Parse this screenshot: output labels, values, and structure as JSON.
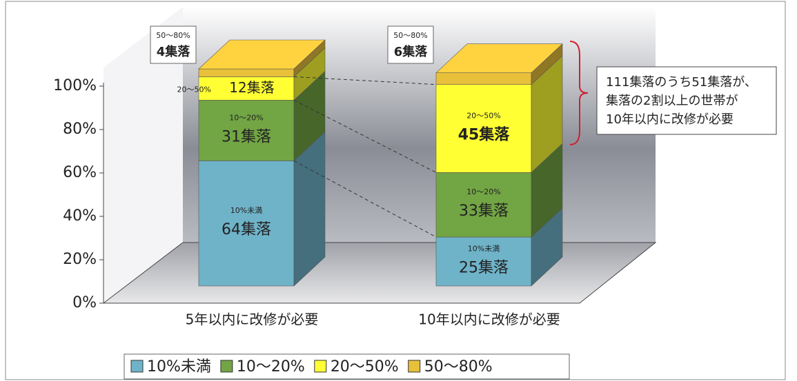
{
  "chart_data": {
    "type": "bar3d_stacked",
    "categories": [
      "5年以内に改修が必要",
      "10年以内に改修が必要"
    ],
    "series": [
      {
        "name": "10%未満",
        "color": "#6fb3c9",
        "values": [
          64,
          25
        ],
        "value_labels": [
          "64集落",
          "25集落"
        ]
      },
      {
        "name": "10～20%",
        "color": "#72a544",
        "values": [
          31,
          33
        ],
        "value_labels": [
          "31集落",
          "33集落"
        ]
      },
      {
        "name": "20～50%",
        "color": "#ffff33",
        "values": [
          12,
          45
        ],
        "value_labels": [
          "12集落",
          "45集落"
        ]
      },
      {
        "name": "50～80%",
        "color": "#e8c03a",
        "values": [
          4,
          6
        ],
        "value_labels": [
          "4集落",
          "6集落"
        ]
      }
    ],
    "ylim": [
      0,
      111
    ],
    "yticks": [
      {
        "value": 0,
        "label": "0%"
      },
      {
        "value": 22.2,
        "label": "20%"
      },
      {
        "value": 44.4,
        "label": "40%"
      },
      {
        "value": 66.6,
        "label": "60%"
      },
      {
        "value": 88.8,
        "label": "80%"
      },
      {
        "value": 111,
        "label": "100%"
      }
    ],
    "annotation": [
      "111集落のうち51集落が、",
      "集落の2割以上の世帯が",
      "10年以内に改修が必要"
    ]
  }
}
